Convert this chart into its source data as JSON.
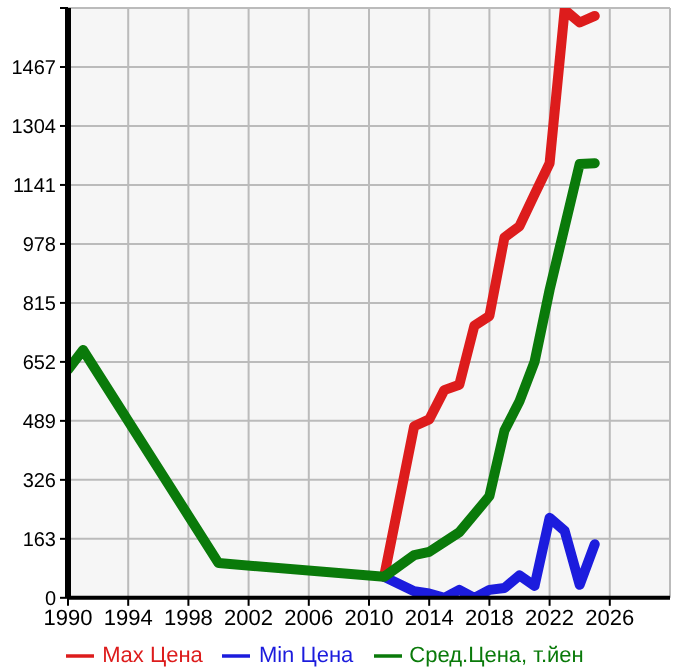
{
  "chart_data": {
    "type": "line",
    "xlim": [
      1990,
      2030
    ],
    "xticks": [
      1990,
      1994,
      1998,
      2002,
      2006,
      2010,
      2014,
      2018,
      2022,
      2026
    ],
    "ylim": [
      0,
      1630
    ],
    "yticks": [
      0,
      163,
      326,
      489,
      652,
      815,
      978,
      1141,
      1304,
      1467,
      {
        "value": 1630,
        "label": null
      }
    ],
    "grid": true,
    "legend": "bottom",
    "marker": "none",
    "line_style": "solid",
    "series": [
      {
        "name": "Max Цена",
        "color": "#dd1c1c",
        "x": [
          2011,
          2013,
          2014,
          2015,
          2016,
          2017,
          2018,
          2019,
          2020,
          2021,
          2022,
          2023,
          2024,
          2025
        ],
        "values": [
          58,
          474,
          493,
          574,
          589,
          752,
          779,
          996,
          1027,
          1115,
          1201,
          1625,
          1590,
          1608
        ]
      },
      {
        "name": "Min Цена",
        "color": "#1c1cdd",
        "x": [
          2011,
          2013,
          2014,
          2015,
          2016,
          2017,
          2018,
          2019,
          2020,
          2021,
          2022,
          2023,
          2024,
          2025
        ],
        "values": [
          58,
          18,
          12,
          0,
          22,
          0,
          22,
          27,
          62,
          33,
          221,
          185,
          36,
          148
        ]
      },
      {
        "name": "Сред.Цена, т.йен",
        "color": "#0a7a0a",
        "x": [
          1990,
          1991,
          2000,
          2011,
          2013,
          2014,
          2016,
          2018,
          2019,
          2020,
          2021,
          2022,
          2024,
          2025
        ],
        "values": [
          630,
          685,
          96,
          58,
          118,
          127,
          181,
          281,
          462,
          543,
          652,
          851,
          1199,
          1201
        ]
      }
    ]
  }
}
